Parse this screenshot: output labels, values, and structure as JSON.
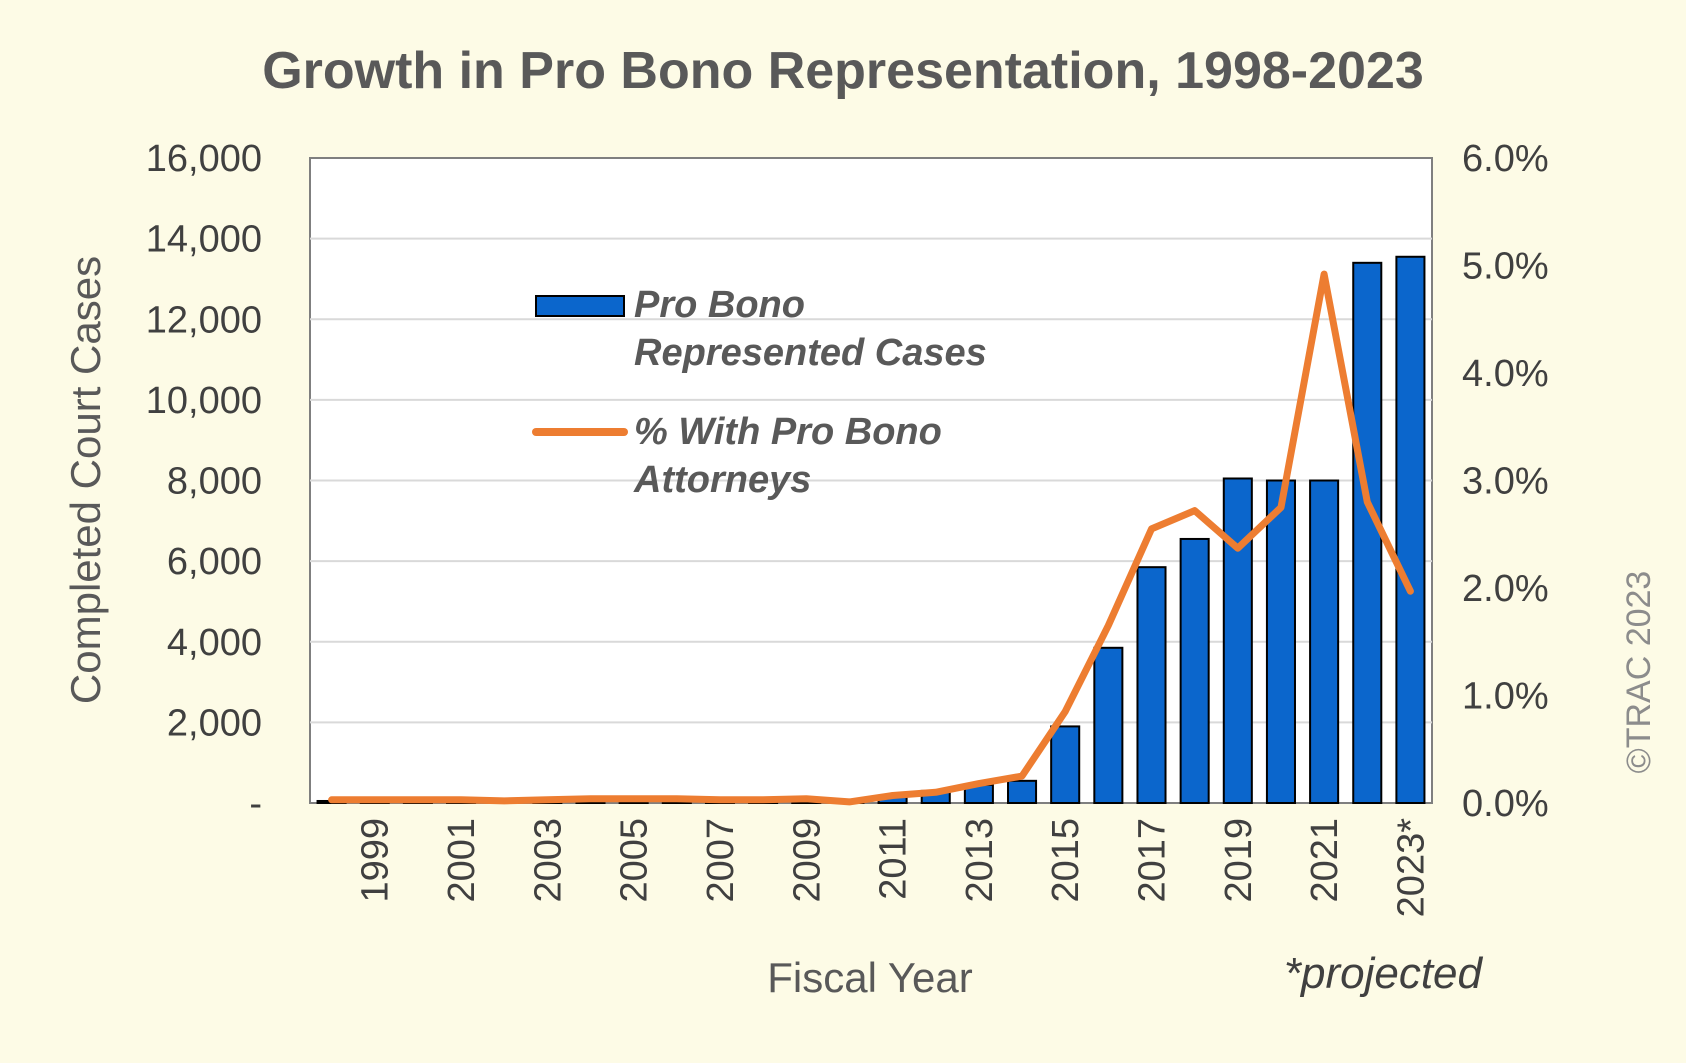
{
  "chart_data": {
    "type": "bar",
    "title": "Growth in Pro Bono Representation, 1998-2023",
    "xlabel": "Fiscal Year",
    "ylabel": "Completed Court Cases",
    "categories": [
      "1998",
      "1999",
      "2000",
      "2001",
      "2002",
      "2003",
      "2004",
      "2005",
      "2006",
      "2007",
      "2008",
      "2009",
      "2010",
      "2011",
      "2012",
      "2013",
      "2014",
      "2015",
      "2016",
      "2017",
      "2018",
      "2019",
      "2020",
      "2021",
      "2022",
      "2023*"
    ],
    "category_labels": [
      "",
      "1999",
      "",
      "2001",
      "",
      "2003",
      "",
      "2005",
      "",
      "2007",
      "",
      "2009",
      "",
      "2011",
      "",
      "2013",
      "",
      "2015",
      "",
      "2017",
      "",
      "2019",
      "",
      "2021",
      "",
      "2023*"
    ],
    "ylim": [
      0,
      16000
    ],
    "y_ticks": [
      0,
      2000,
      4000,
      6000,
      8000,
      10000,
      12000,
      14000,
      16000
    ],
    "y_tick_labels": [
      "-",
      "2,000",
      "4,000",
      "6,000",
      "8,000",
      "10,000",
      "12,000",
      "14,000",
      "16,000"
    ],
    "y2lim": [
      0,
      6.0
    ],
    "y2_ticks": [
      0,
      1,
      2,
      3,
      4,
      5,
      6
    ],
    "y2_tick_labels": [
      "0.0%",
      "1.0%",
      "2.0%",
      "3.0%",
      "4.0%",
      "5.0%",
      "6.0%"
    ],
    "grid": true,
    "legend_position": "upper-left inside plot",
    "series": [
      {
        "name": "Pro Bono Represented Cases",
        "legend_lines": [
          "Pro Bono",
          "Represented Cases"
        ],
        "type": "bar",
        "axis": "left",
        "color": "#0b66cc",
        "values": [
          50,
          30,
          20,
          20,
          20,
          20,
          30,
          30,
          30,
          30,
          30,
          50,
          60,
          150,
          300,
          450,
          550,
          1900,
          3850,
          5850,
          6550,
          8050,
          8000,
          8000,
          13400,
          13550
        ]
      },
      {
        "name": "% With Pro Bono Attorneys",
        "legend_lines": [
          "% With Pro Bono",
          "Attorneys"
        ],
        "type": "line",
        "axis": "right",
        "color": "#ed7d31",
        "values": [
          0.03,
          0.03,
          0.03,
          0.03,
          0.02,
          0.03,
          0.04,
          0.04,
          0.04,
          0.03,
          0.03,
          0.04,
          0.01,
          0.07,
          0.1,
          0.18,
          0.25,
          0.85,
          1.65,
          2.55,
          2.72,
          2.37,
          2.75,
          4.92,
          2.8,
          1.97
        ]
      }
    ],
    "footnote": "*projected",
    "credit": "©TRAC 2023"
  }
}
